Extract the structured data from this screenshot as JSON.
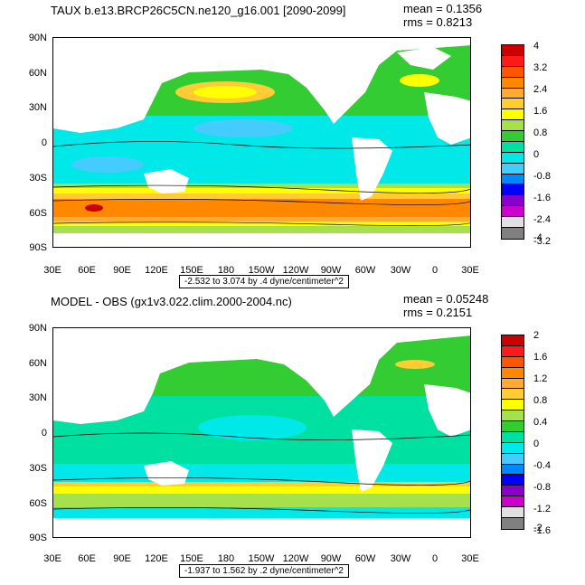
{
  "panels": [
    {
      "title": "TAUX b.e13.BRCP26C5CN.ne120_g16.001 [2090-2099]",
      "mean": "mean = 0.1356",
      "rms": "rms = 0.8213",
      "range": "-2.532 to 3.074 by .4 dyne/centimeter^2",
      "lat_labels": [
        "90N",
        "60N",
        "30N",
        "0",
        "30S",
        "60S",
        "90S"
      ],
      "lon_labels": [
        "30E",
        "60E",
        "90E",
        "120E",
        "150E",
        "180",
        "150W",
        "120W",
        "90W",
        "60W",
        "30W",
        "0",
        "30E"
      ],
      "colorbar_labels": [
        "4",
        "3.2",
        "2.4",
        "1.6",
        "0.8",
        "0",
        "-0.8",
        "-1.6",
        "-2.4",
        "-3.2",
        "-4"
      ],
      "colors": [
        "#cc0000",
        "#ff1a1a",
        "#ff5500",
        "#ff8800",
        "#ffaa33",
        "#ffcc33",
        "#ffff00",
        "#a6e04a",
        "#33cc33",
        "#00e0a0",
        "#00e8e8",
        "#44ccff",
        "#0088ff",
        "#0000ff",
        "#8800cc",
        "#cc00cc",
        "#e0e0e0",
        "#808080"
      ]
    },
    {
      "title": "MODEL - OBS (gx1v3.022.clim.2000-2004.nc)",
      "mean": "mean = 0.05248",
      "rms": "rms = 0.2151",
      "range": "-1.937 to 1.562 by .2 dyne/centimeter^2",
      "lat_labels": [
        "90N",
        "60N",
        "30N",
        "0",
        "30S",
        "60S",
        "90S"
      ],
      "lon_labels": [
        "30E",
        "60E",
        "90E",
        "120E",
        "150E",
        "180",
        "150W",
        "120W",
        "90W",
        "60W",
        "30W",
        "0",
        "30E"
      ],
      "colorbar_labels": [
        "2",
        "1.6",
        "1.2",
        "0.8",
        "0.4",
        "0",
        "-0.4",
        "-0.8",
        "-1.2",
        "-1.6",
        "-2"
      ],
      "colors": [
        "#cc0000",
        "#ff1a1a",
        "#ff5500",
        "#ff8800",
        "#ffaa33",
        "#ffcc33",
        "#ffff00",
        "#a6e04a",
        "#33cc33",
        "#00e0a0",
        "#00e8e8",
        "#44ccff",
        "#0088ff",
        "#0000ff",
        "#8800cc",
        "#cc00cc",
        "#e0e0e0",
        "#808080"
      ]
    }
  ]
}
